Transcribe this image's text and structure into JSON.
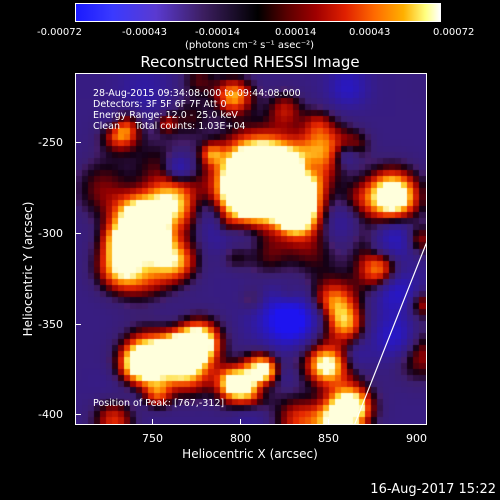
{
  "colorbar": {
    "ticks": [
      "-0.00072",
      "-0.00043",
      "-0.00014",
      "0.00014",
      "0.00043",
      "0.00072"
    ],
    "units": "(photons cm⁻² s⁻¹ asec⁻²)"
  },
  "title": "Reconstructed RHESSI Image",
  "info": {
    "time_range": "28-Aug-2015 09:34:08.000 to 09:44:08.000",
    "detectors": "Detectors: 3F 5F 6F 7F Att 0",
    "energy": "Energy Range: 12.0 - 25.0 keV",
    "clean": "Clean     Total counts: 1.03E+04",
    "pedestal": "Position of Peak: [767,-312]"
  },
  "axes": {
    "xlabel": "Heliocentric X (arcsec)",
    "ylabel": "Heliocentric Y (arcsec)",
    "xticks": [
      "750",
      "800",
      "850",
      "900"
    ],
    "yticks": [
      "-250",
      "-300",
      "-350",
      "-400"
    ]
  },
  "footer": {
    "date": "16-Aug-2017 15:22"
  },
  "colors": {
    "background": "#000000",
    "foreground": "#ffffff"
  }
}
